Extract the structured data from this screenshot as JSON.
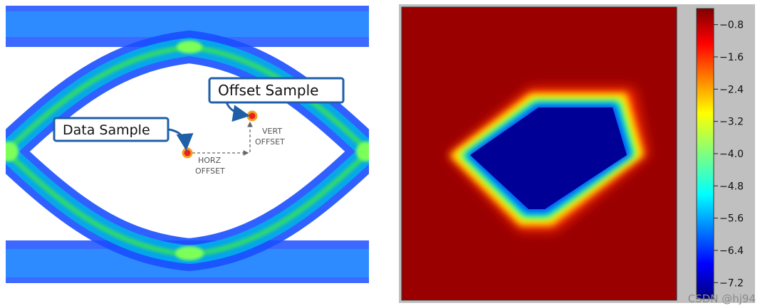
{
  "eye_diagram": {
    "data_sample_label": "Data Sample",
    "offset_sample_label": "Offset Sample",
    "vert_offset_label": [
      "VERT",
      "OFFSET"
    ],
    "horz_offset_label": [
      "HORZ",
      "OFFSET"
    ],
    "colors": {
      "trace_outer": "#2a5cff",
      "trace_mid": "#00b4e6",
      "trace_core": "#33dd66",
      "callout_border": "#1f5fa8",
      "sample_ring": "#f0a020",
      "sample_fill": "#e82020"
    }
  },
  "colorbar": {
    "ticks": [
      -0.8,
      -1.6,
      -2.4,
      -3.2,
      -4.0,
      -4.8,
      -5.6,
      -6.4,
      -7.2
    ],
    "tick_labels": [
      "−0.8",
      "−1.6",
      "−2.4",
      "−3.2",
      "−4.0",
      "−4.8",
      "−5.6",
      "−6.4",
      "−7.2"
    ],
    "range": [
      -7.6,
      -0.4
    ],
    "colormap": "jet"
  },
  "watermark": "CSDN @hj94"
}
